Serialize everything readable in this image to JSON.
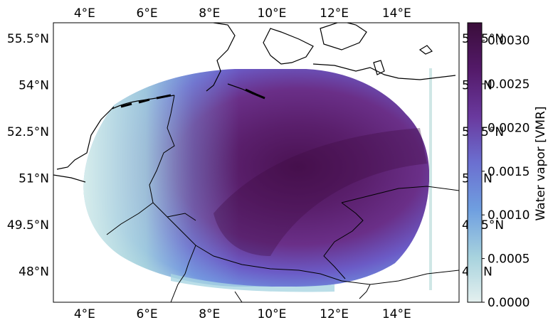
{
  "map": {
    "lon_ticks": [
      {
        "value": 4,
        "label": "4°E"
      },
      {
        "value": 6,
        "label": "6°E"
      },
      {
        "value": 8,
        "label": "8°E"
      },
      {
        "value": 10,
        "label": "10°E"
      },
      {
        "value": 12,
        "label": "12°E"
      },
      {
        "value": 14,
        "label": "14°E"
      }
    ],
    "lat_ticks": [
      {
        "value": 55.5,
        "label": "55.5°N"
      },
      {
        "value": 54,
        "label": "54°N"
      },
      {
        "value": 52.5,
        "label": "52.5°N"
      },
      {
        "value": 51,
        "label": "51°N"
      },
      {
        "value": 49.5,
        "label": "49.5°N"
      },
      {
        "value": 48,
        "label": "48°N"
      }
    ],
    "lon_range": [
      3,
      16
    ],
    "lat_range": [
      47,
      56
    ]
  },
  "colorbar": {
    "label": "Water vapor [VMR]",
    "min": 0.0,
    "max": 0.0032,
    "ticks": [
      {
        "value": 0.0,
        "label": "0.0000"
      },
      {
        "value": 0.0005,
        "label": "0.0005"
      },
      {
        "value": 0.001,
        "label": "0.0010"
      },
      {
        "value": 0.0015,
        "label": "0.0015"
      },
      {
        "value": 0.002,
        "label": "0.0020"
      },
      {
        "value": 0.0025,
        "label": "0.0025"
      },
      {
        "value": 0.003,
        "label": "0.0030"
      }
    ],
    "colormap": [
      "#e4f0ef",
      "#a8d3de",
      "#6f9fe0",
      "#6b6fd0",
      "#6a3a9f",
      "#541a6a",
      "#3a0d3a"
    ]
  }
}
